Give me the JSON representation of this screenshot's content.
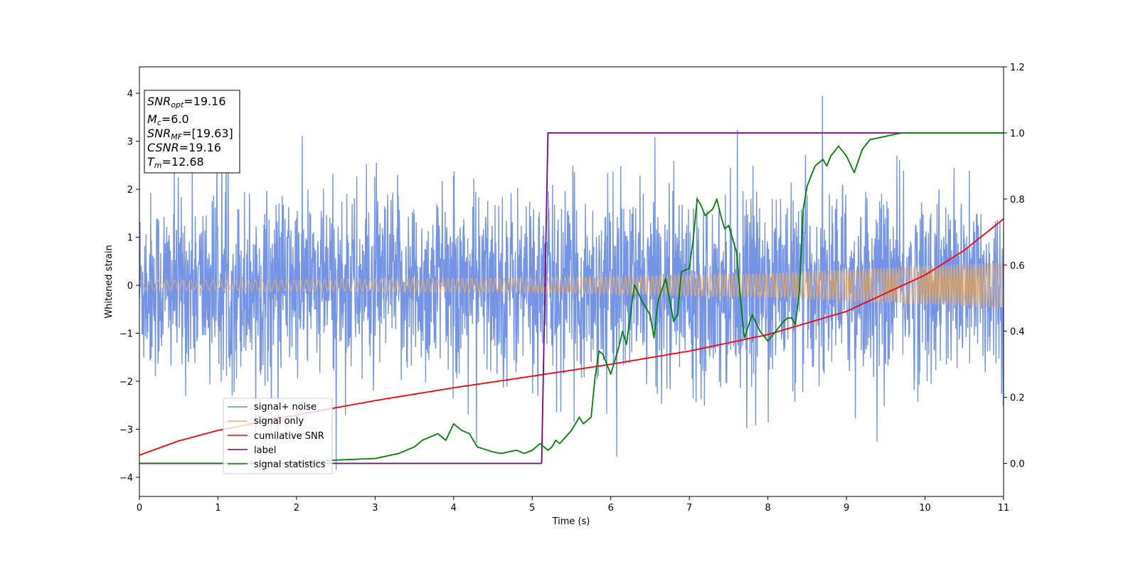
{
  "chart_data": {
    "type": "line",
    "xlabel": "Time (s)",
    "ylabel": "Whitened strain",
    "xlim": [
      0,
      11
    ],
    "ylim_left": [
      -4.4,
      4.55
    ],
    "ylim_right": [
      -0.1,
      1.2
    ],
    "x_ticks": [
      "0",
      "1",
      "2",
      "3",
      "4",
      "5",
      "6",
      "7",
      "8",
      "9",
      "10",
      "11"
    ],
    "y_ticks_left": [
      "4",
      "3",
      "2",
      "1",
      "0",
      "−1",
      "−2",
      "−3",
      "−4"
    ],
    "y_ticks_right": [
      "1.2",
      "1.0",
      "0.8",
      "0.6",
      "0.4",
      "0.2",
      "0.0"
    ],
    "legend_position": "lower-left",
    "series": [
      {
        "name": "signal+ noise",
        "color": "#6688e3",
        "axis": "left",
        "description": "whitened noise, amplitude roughly ±2 with spikes to ±4"
      },
      {
        "name": "signal only",
        "color": "#f0b060",
        "axis": "left",
        "amplitude_envelope": {
          "x": [
            0,
            5,
            8,
            11
          ],
          "y": [
            0.1,
            0.15,
            0.25,
            0.48
          ]
        }
      },
      {
        "name": "cumilative SNR",
        "color": "#ff0000",
        "axis": "right",
        "x": [
          0,
          0.5,
          1,
          2,
          3,
          4,
          5,
          6,
          7,
          8,
          9,
          10,
          10.5,
          11
        ],
        "y": [
          0.025,
          0.068,
          0.1,
          0.147,
          0.19,
          0.229,
          0.264,
          0.3,
          0.34,
          0.39,
          0.46,
          0.57,
          0.645,
          0.74
        ]
      },
      {
        "name": "label",
        "color": "#800080",
        "axis": "right",
        "x": [
          0,
          5.12,
          5.2,
          11
        ],
        "y": [
          0,
          0,
          1,
          1
        ]
      },
      {
        "name": "signal statistics",
        "color": "#008000",
        "axis": "right",
        "x": [
          0,
          1,
          2,
          2.5,
          3,
          3.3,
          3.5,
          3.6,
          3.8,
          3.9,
          4.0,
          4.1,
          4.2,
          4.3,
          4.5,
          4.6,
          4.8,
          4.9,
          5.0,
          5.05,
          5.1,
          5.2,
          5.25,
          5.3,
          5.35,
          5.5,
          5.6,
          5.65,
          5.75,
          5.8,
          5.85,
          5.9,
          6.0,
          6.1,
          6.15,
          6.2,
          6.3,
          6.4,
          6.5,
          6.55,
          6.6,
          6.7,
          6.8,
          6.85,
          6.9,
          7.0,
          7.05,
          7.1,
          7.15,
          7.2,
          7.25,
          7.3,
          7.35,
          7.4,
          7.45,
          7.5,
          7.6,
          7.65,
          7.7,
          7.8,
          7.9,
          8.0,
          8.1,
          8.2,
          8.25,
          8.3,
          8.35,
          8.4,
          8.45,
          8.5,
          8.6,
          8.7,
          8.75,
          8.8,
          8.9,
          9.0,
          9.1,
          9.2,
          9.3,
          9.5,
          9.7,
          10.0,
          10.5,
          11
        ],
        "y": [
          0,
          0,
          0.002,
          0.01,
          0.015,
          0.03,
          0.05,
          0.07,
          0.09,
          0.07,
          0.12,
          0.1,
          0.09,
          0.05,
          0.035,
          0.03,
          0.04,
          0.03,
          0.04,
          0.05,
          0.06,
          0.04,
          0.05,
          0.07,
          0.06,
          0.1,
          0.14,
          0.12,
          0.14,
          0.26,
          0.34,
          0.33,
          0.27,
          0.35,
          0.4,
          0.36,
          0.54,
          0.49,
          0.45,
          0.38,
          0.49,
          0.56,
          0.43,
          0.45,
          0.58,
          0.59,
          0.68,
          0.8,
          0.78,
          0.75,
          0.76,
          0.77,
          0.8,
          0.75,
          0.71,
          0.72,
          0.64,
          0.5,
          0.38,
          0.45,
          0.4,
          0.37,
          0.4,
          0.43,
          0.44,
          0.44,
          0.42,
          0.52,
          0.77,
          0.84,
          0.9,
          0.92,
          0.9,
          0.93,
          0.96,
          0.93,
          0.88,
          0.95,
          0.98,
          0.99,
          1.0,
          1.0,
          1.0,
          1.0
        ]
      }
    ]
  },
  "info_box": {
    "snr_opt_label": "SNR",
    "snr_opt_sub": "opt",
    "snr_opt_value": "=19.16",
    "mc_label": "M",
    "mc_sub": "c",
    "mc_value": "=6.0",
    "snr_mf_label": "SNR",
    "snr_mf_sub": "MF",
    "snr_mf_value": "=[19.63]",
    "csnr_label": "CSNR",
    "csnr_value": "=19.16",
    "tm_label": "T",
    "tm_sub": "m",
    "tm_value": "=12.68"
  }
}
